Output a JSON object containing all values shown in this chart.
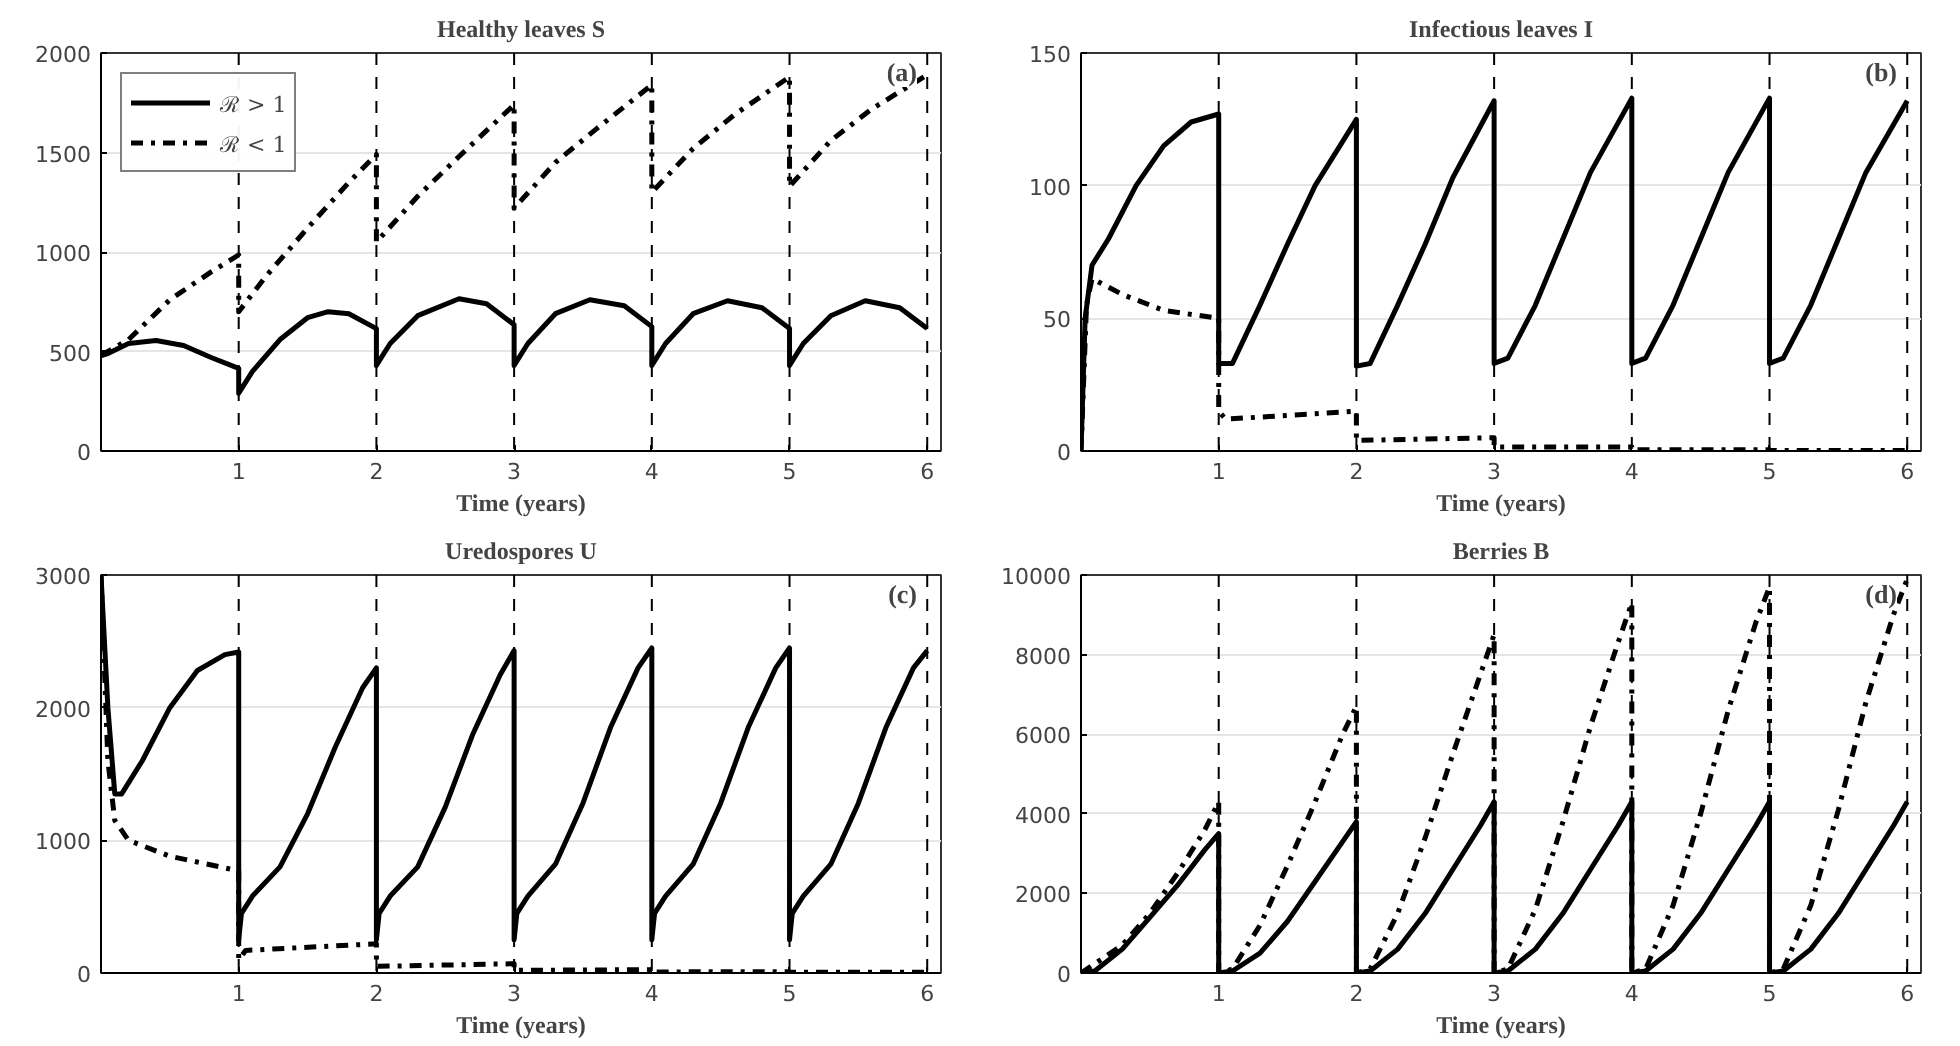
{
  "chart_data": [
    {
      "type": "line",
      "title": "Healthy leaves S",
      "xlabel": "Time (years)",
      "annotations": [
        "(a)"
      ],
      "xlim": [
        0,
        6.1
      ],
      "xticks": [
        1,
        2,
        3,
        4,
        5,
        6
      ],
      "ylim": [
        0,
        2000
      ],
      "yticks": [
        0,
        500,
        1000,
        1500,
        2000
      ],
      "grid": "y",
      "legend": "top left",
      "ref_lines": [
        {
          "axis": "x",
          "value": 1,
          "color": "#000000",
          "line_style": "dashed"
        },
        {
          "axis": "x",
          "value": 2,
          "color": "#000000",
          "line_style": "dashed"
        },
        {
          "axis": "x",
          "value": 3,
          "color": "#000000",
          "line_style": "dashed"
        },
        {
          "axis": "x",
          "value": 4,
          "color": "#000000",
          "line_style": "dashed"
        },
        {
          "axis": "x",
          "value": 5,
          "color": "#000000",
          "line_style": "dashed"
        },
        {
          "axis": "x",
          "value": 6,
          "color": "#000000",
          "line_style": "dashed"
        }
      ],
      "series": [
        {
          "name": "ℛ > 1",
          "color": "#000000",
          "line_style": "solid",
          "x": [
            0,
            0.05,
            0.2,
            0.4,
            0.6,
            0.8,
            1.0,
            1.0,
            1.1,
            1.3,
            1.5,
            1.65,
            1.8,
            2.0,
            2.0,
            2.1,
            2.3,
            2.6,
            2.8,
            3.0,
            3.0,
            3.1,
            3.3,
            3.55,
            3.8,
            4.0,
            4.0,
            4.1,
            4.3,
            4.55,
            4.8,
            5.0,
            5.0,
            5.1,
            5.3,
            5.55,
            5.8,
            6.0
          ],
          "values": [
            480,
            490,
            540,
            555,
            530,
            470,
            415,
            290,
            400,
            560,
            670,
            700,
            690,
            615,
            430,
            540,
            680,
            765,
            740,
            635,
            430,
            540,
            690,
            760,
            730,
            625,
            430,
            540,
            690,
            755,
            720,
            615,
            430,
            540,
            680,
            755,
            720,
            615
          ]
        },
        {
          "name": "ℛ < 1",
          "color": "#000000",
          "line_style": "dashdot",
          "x": [
            0,
            0.2,
            0.5,
            0.8,
            1.0,
            1.0,
            1.2,
            1.5,
            1.8,
            2.0,
            2.0,
            2.3,
            2.6,
            3.0,
            3.0,
            3.3,
            3.6,
            4.0,
            4.0,
            4.3,
            4.6,
            5.0,
            5.0,
            5.3,
            5.6,
            6.0
          ],
          "values": [
            480,
            560,
            760,
            900,
            985,
            700,
            880,
            1120,
            1350,
            1490,
            1050,
            1280,
            1480,
            1740,
            1220,
            1450,
            1620,
            1840,
            1300,
            1520,
            1690,
            1880,
            1330,
            1560,
            1720,
            1890
          ]
        }
      ]
    },
    {
      "type": "line",
      "title": "Infectious leaves I",
      "xlabel": "Time (years)",
      "annotations": [
        "(b)"
      ],
      "xlim": [
        0,
        6.1
      ],
      "xticks": [
        1,
        2,
        3,
        4,
        5,
        6
      ],
      "ylim": [
        0,
        150
      ],
      "yticks": [
        0,
        50,
        100,
        150
      ],
      "grid": "y",
      "ref_lines": [
        {
          "axis": "x",
          "value": 1,
          "color": "#000000",
          "line_style": "dashed"
        },
        {
          "axis": "x",
          "value": 2,
          "color": "#000000",
          "line_style": "dashed"
        },
        {
          "axis": "x",
          "value": 3,
          "color": "#000000",
          "line_style": "dashed"
        },
        {
          "axis": "x",
          "value": 4,
          "color": "#000000",
          "line_style": "dashed"
        },
        {
          "axis": "x",
          "value": 5,
          "color": "#000000",
          "line_style": "dashed"
        },
        {
          "axis": "x",
          "value": 6,
          "color": "#000000",
          "line_style": "dashed"
        }
      ],
      "series": [
        {
          "color": "#000000",
          "line_style": "solid",
          "x": [
            0,
            0.03,
            0.08,
            0.2,
            0.4,
            0.6,
            0.8,
            1.0,
            1.0,
            1.1,
            1.3,
            1.5,
            1.7,
            2.0,
            2.0,
            2.1,
            2.3,
            2.5,
            2.7,
            3.0,
            3.0,
            3.1,
            3.3,
            3.5,
            3.7,
            4.0,
            4.0,
            4.1,
            4.3,
            4.5,
            4.7,
            5.0,
            5.0,
            5.1,
            5.3,
            5.5,
            5.7,
            6.0
          ],
          "values": [
            0,
            50,
            70,
            80,
            100,
            115,
            124,
            127,
            33,
            33,
            55,
            78,
            100,
            125,
            32,
            33,
            55,
            78,
            103,
            132,
            33,
            35,
            55,
            80,
            105,
            133,
            33,
            35,
            55,
            80,
            105,
            133,
            33,
            35,
            55,
            80,
            105,
            132
          ]
        },
        {
          "color": "#000000",
          "line_style": "dashdot",
          "x": [
            0,
            0.04,
            0.08,
            0.3,
            0.6,
            1.0,
            1.0,
            1.05,
            2.0,
            2.0,
            3.0,
            3.0,
            4.0,
            4.0,
            5.0,
            5.0,
            6.0
          ],
          "values": [
            0,
            55,
            65,
            59,
            53,
            50,
            15,
            12,
            15,
            4,
            5,
            1.5,
            1.5,
            0.5,
            0.5,
            0.2,
            0.2
          ]
        }
      ]
    },
    {
      "type": "line",
      "title": "Uredospores U",
      "xlabel": "Time (years)",
      "annotations": [
        "(c)"
      ],
      "xlim": [
        0,
        6.1
      ],
      "xticks": [
        1,
        2,
        3,
        4,
        5,
        6
      ],
      "ylim": [
        0,
        3000
      ],
      "yticks": [
        0,
        1000,
        2000,
        3000
      ],
      "grid": "y",
      "ref_lines": [
        {
          "axis": "x",
          "value": 1,
          "color": "#000000",
          "line_style": "dashed"
        },
        {
          "axis": "x",
          "value": 2,
          "color": "#000000",
          "line_style": "dashed"
        },
        {
          "axis": "x",
          "value": 3,
          "color": "#000000",
          "line_style": "dashed"
        },
        {
          "axis": "x",
          "value": 4,
          "color": "#000000",
          "line_style": "dashed"
        },
        {
          "axis": "x",
          "value": 5,
          "color": "#000000",
          "line_style": "dashed"
        },
        {
          "axis": "x",
          "value": 6,
          "color": "#000000",
          "line_style": "dashed"
        }
      ],
      "series": [
        {
          "color": "#000000",
          "line_style": "solid",
          "x": [
            0,
            0.05,
            0.1,
            0.15,
            0.3,
            0.5,
            0.7,
            0.9,
            1.0,
            1.0,
            1.02,
            1.1,
            1.3,
            1.5,
            1.7,
            1.9,
            2.0,
            2.0,
            2.02,
            2.1,
            2.3,
            2.5,
            2.7,
            2.9,
            3.0,
            3.0,
            3.02,
            3.1,
            3.3,
            3.5,
            3.7,
            3.9,
            4.0,
            4.0,
            4.02,
            4.1,
            4.3,
            4.5,
            4.7,
            4.9,
            5.0,
            5.0,
            5.02,
            5.1,
            5.3,
            5.5,
            5.7,
            5.9,
            6.0
          ],
          "values": [
            3000,
            2000,
            1350,
            1350,
            1600,
            2000,
            2280,
            2400,
            2420,
            250,
            450,
            580,
            800,
            1200,
            1700,
            2150,
            2300,
            250,
            450,
            580,
            800,
            1250,
            1800,
            2250,
            2430,
            250,
            450,
            580,
            820,
            1280,
            1850,
            2300,
            2450,
            250,
            450,
            580,
            820,
            1280,
            1850,
            2300,
            2450,
            250,
            450,
            580,
            820,
            1280,
            1850,
            2300,
            2430
          ]
        },
        {
          "color": "#000000",
          "line_style": "dashdot",
          "x": [
            0,
            0.05,
            0.1,
            0.2,
            0.5,
            1.0,
            1.0,
            1.05,
            2.0,
            2.0,
            3.0,
            3.0,
            4.0,
            4.0,
            5.0,
            5.0,
            6.0
          ],
          "values": [
            3000,
            1600,
            1150,
            1000,
            880,
            770,
            100,
            170,
            220,
            50,
            70,
            20,
            25,
            8,
            10,
            5,
            5
          ]
        }
      ]
    },
    {
      "type": "line",
      "title": "Berries B",
      "xlabel": "Time (years)",
      "annotations": [
        "(d)"
      ],
      "xlim": [
        0,
        6.1
      ],
      "xticks": [
        1,
        2,
        3,
        4,
        5,
        6
      ],
      "ylim": [
        0,
        10000
      ],
      "yticks": [
        0,
        2000,
        4000,
        6000,
        8000,
        10000
      ],
      "grid": "y",
      "ref_lines": [
        {
          "axis": "x",
          "value": 1,
          "color": "#000000",
          "line_style": "dashed"
        },
        {
          "axis": "x",
          "value": 2,
          "color": "#000000",
          "line_style": "dashed"
        },
        {
          "axis": "x",
          "value": 3,
          "color": "#000000",
          "line_style": "dashed"
        },
        {
          "axis": "x",
          "value": 4,
          "color": "#000000",
          "line_style": "dashed"
        },
        {
          "axis": "x",
          "value": 5,
          "color": "#000000",
          "line_style": "dashed"
        },
        {
          "axis": "x",
          "value": 6,
          "color": "#000000",
          "line_style": "dashed"
        }
      ],
      "series": [
        {
          "color": "#000000",
          "line_style": "solid",
          "x": [
            0,
            0.1,
            0.3,
            0.5,
            0.7,
            0.9,
            1.0,
            1.0,
            1.1,
            1.3,
            1.5,
            1.7,
            1.9,
            2.0,
            2.0,
            2.1,
            2.3,
            2.5,
            2.7,
            2.9,
            3.0,
            3.0,
            3.1,
            3.3,
            3.5,
            3.7,
            3.9,
            4.0,
            4.0,
            4.1,
            4.3,
            4.5,
            4.7,
            4.9,
            5.0,
            5.0,
            5.1,
            5.3,
            5.5,
            5.7,
            5.9,
            6.0
          ],
          "values": [
            0,
            50,
            600,
            1400,
            2200,
            3100,
            3500,
            0,
            50,
            500,
            1300,
            2300,
            3300,
            3800,
            0,
            50,
            600,
            1500,
            2600,
            3700,
            4300,
            0,
            50,
            600,
            1500,
            2600,
            3700,
            4300,
            0,
            50,
            600,
            1500,
            2600,
            3700,
            4300,
            0,
            50,
            600,
            1500,
            2600,
            3700,
            4300
          ]
        },
        {
          "color": "#000000",
          "line_style": "dashdot",
          "x": [
            0,
            0.3,
            0.5,
            0.7,
            0.9,
            1.0,
            1.0,
            1.1,
            1.3,
            1.5,
            1.7,
            1.9,
            2.0,
            2.0,
            2.1,
            2.3,
            2.5,
            2.7,
            2.9,
            3.0,
            3.0,
            3.1,
            3.3,
            3.5,
            3.7,
            3.9,
            4.0,
            4.0,
            4.1,
            4.3,
            4.5,
            4.7,
            4.9,
            5.0,
            5.0,
            5.1,
            5.3,
            5.5,
            5.7,
            5.9,
            6.0
          ],
          "values": [
            0,
            700,
            1500,
            2500,
            3600,
            4300,
            0,
            100,
            1200,
            2700,
            4300,
            6000,
            6700,
            0,
            100,
            1500,
            3400,
            5500,
            7500,
            8500,
            0,
            100,
            1600,
            3800,
            6200,
            8300,
            9300,
            0,
            100,
            1700,
            4000,
            6600,
            8800,
            9700,
            0,
            100,
            1700,
            4100,
            6800,
            9000,
            9900
          ]
        }
      ]
    }
  ]
}
